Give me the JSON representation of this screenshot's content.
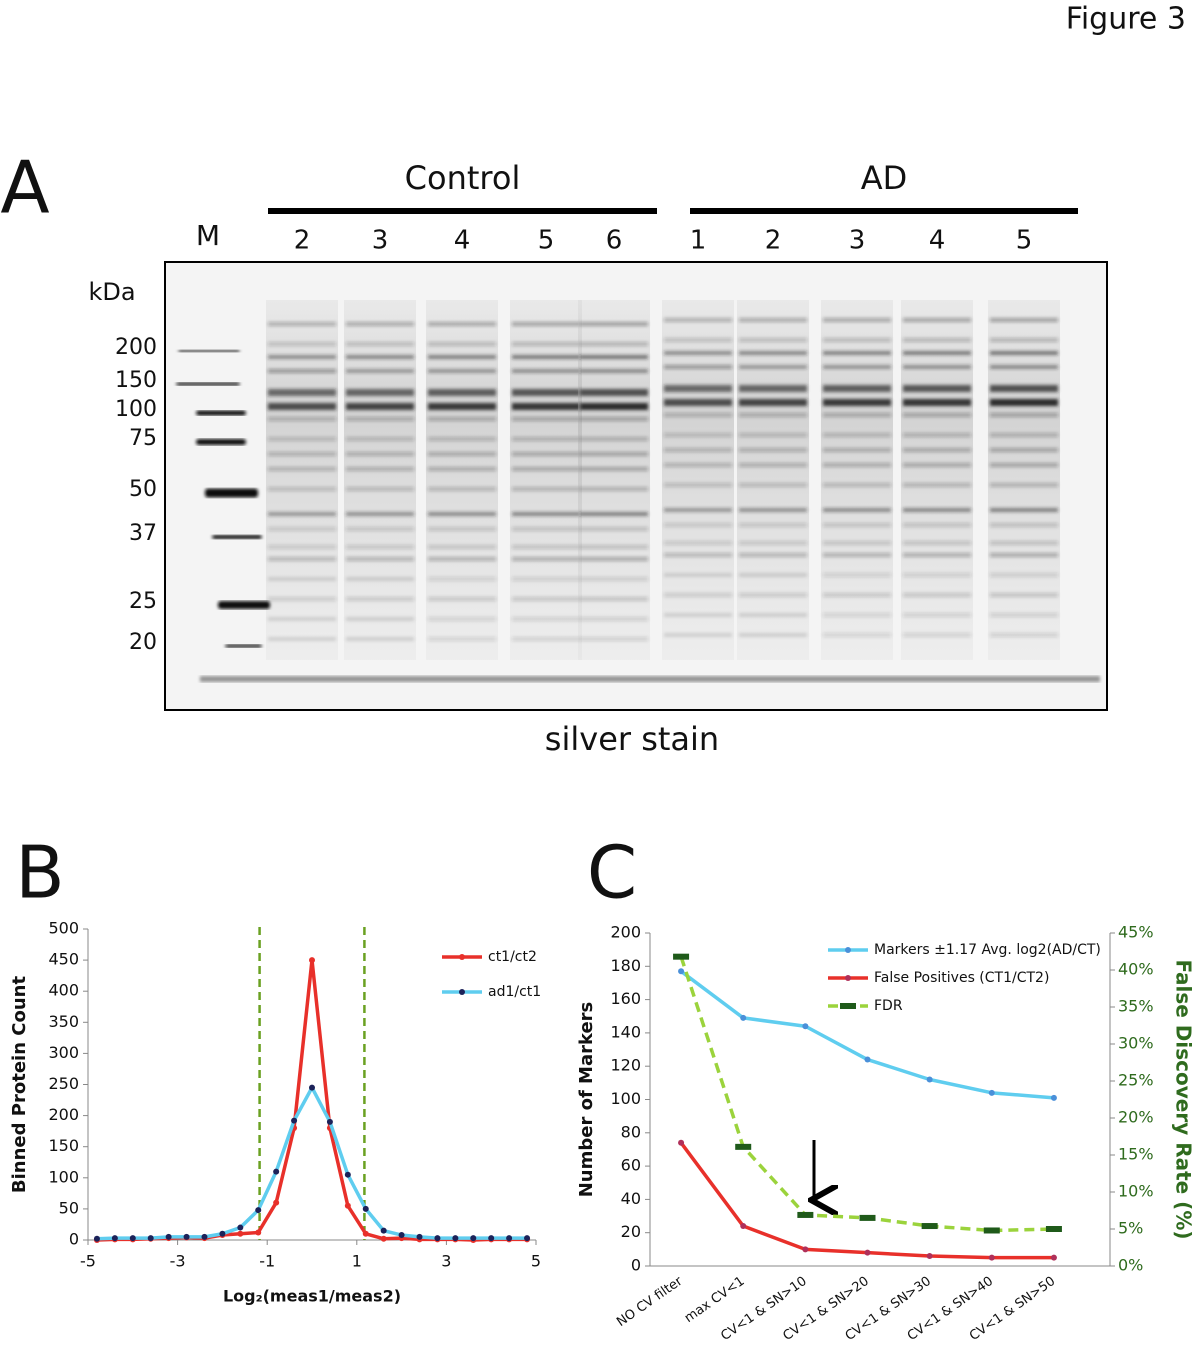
{
  "figure": {
    "title": "Figure 3"
  },
  "gel": {
    "label": "A",
    "marker_lane": "M",
    "unit": "kDa",
    "groups": [
      {
        "name": "Control",
        "lanes": [
          "2",
          "3",
          "4",
          "5",
          "6"
        ]
      },
      {
        "name": "AD",
        "lanes": [
          "1",
          "2",
          "3",
          "4",
          "5"
        ]
      }
    ],
    "markers": [
      200,
      150,
      100,
      75,
      50,
      37,
      25,
      20
    ],
    "caption": "silver stain"
  },
  "chart_data": [
    {
      "type": "line",
      "panel_label": "B",
      "xlabel": "Log₂(meas1/meas2)",
      "ylabel": "Binned Protein Count",
      "x": [
        -4.8,
        -4.4,
        -4.0,
        -3.6,
        -3.2,
        -2.8,
        -2.4,
        -2.0,
        -1.6,
        -1.2,
        -0.8,
        -0.4,
        0,
        0.4,
        0.8,
        1.2,
        1.6,
        2.0,
        2.4,
        2.8,
        3.2,
        3.6,
        4.0,
        4.4,
        4.8
      ],
      "series": [
        {
          "name": "ct1/ct2",
          "color": "#e8302a",
          "marker_color": "#e8302a",
          "marker": "circle",
          "values": [
            0,
            1,
            1,
            2,
            3,
            4,
            3,
            8,
            10,
            12,
            60,
            180,
            450,
            180,
            55,
            10,
            2,
            3,
            1,
            1,
            1,
            0,
            1,
            1,
            1
          ]
        },
        {
          "name": "ad1/ct1",
          "color": "#5fcdef",
          "marker_color": "#1c2259",
          "marker": "circle",
          "values": [
            2,
            3,
            3,
            3,
            5,
            5,
            5,
            10,
            20,
            48,
            110,
            192,
            245,
            190,
            105,
            50,
            15,
            8,
            5,
            3,
            3,
            3,
            3,
            3,
            3
          ]
        }
      ],
      "xlim": [
        -5,
        5
      ],
      "xticks": [
        -5,
        -3,
        -1,
        1,
        3,
        5
      ],
      "ylim": [
        0,
        500
      ],
      "yticks": [
        0,
        50,
        100,
        150,
        200,
        250,
        300,
        350,
        400,
        450,
        500
      ],
      "vlines": [
        -1.17,
        1.17
      ],
      "vline_color": "#6aa121",
      "legend": "upper right"
    },
    {
      "type": "line",
      "panel_label": "C",
      "ylabel": "Number of Markers",
      "y2label": "False Discovery Rate (%)",
      "y2label_color": "#2f6b1e",
      "categories": [
        "NO CV filter",
        "max CV<1",
        "CV<1 & SN>10",
        "CV<1 & SN>20",
        "CV<1 & SN>30",
        "CV<1 & SN>40",
        "CV<1 & SN>50"
      ],
      "series": [
        {
          "name": "Markers ±1.17 Avg. log2(AD/CT)",
          "color": "#5fcdef",
          "marker_color": "#4a90d9",
          "marker": "circle",
          "values": [
            177,
            149,
            144,
            124,
            112,
            104,
            101
          ]
        },
        {
          "name": "False Positives (CT1/CT2)",
          "color": "#e8302a",
          "marker_color": "#b0305a",
          "marker": "circle",
          "values": [
            74,
            24,
            10,
            8,
            6,
            5,
            5
          ]
        },
        {
          "name": "FDR",
          "color": "#9bd33c",
          "marker_color": "#1f5a1a",
          "marker": "dash",
          "dashed": true,
          "axis": "y2",
          "values": [
            41.8,
            16.1,
            6.9,
            6.5,
            5.4,
            4.8,
            5.0
          ]
        }
      ],
      "ylim": [
        0,
        200
      ],
      "yticks": [
        0,
        20,
        40,
        60,
        80,
        100,
        120,
        140,
        160,
        180,
        200
      ],
      "y2lim": [
        0,
        45
      ],
      "y2ticks": [
        {
          "value": 0,
          "label": "0%"
        },
        {
          "value": 5,
          "label": "5%"
        },
        {
          "value": 10,
          "label": "10%"
        },
        {
          "value": 15,
          "label": "15%"
        },
        {
          "value": 20,
          "label": "20%"
        },
        {
          "value": 25,
          "label": "25%"
        },
        {
          "value": 30,
          "label": "30%"
        },
        {
          "value": 35,
          "label": "35%"
        },
        {
          "value": 40,
          "label": "40%"
        },
        {
          "value": 45,
          "label": "45%"
        }
      ],
      "y2tick_color": "#2f6b1e",
      "legend": "upper right"
    }
  ]
}
